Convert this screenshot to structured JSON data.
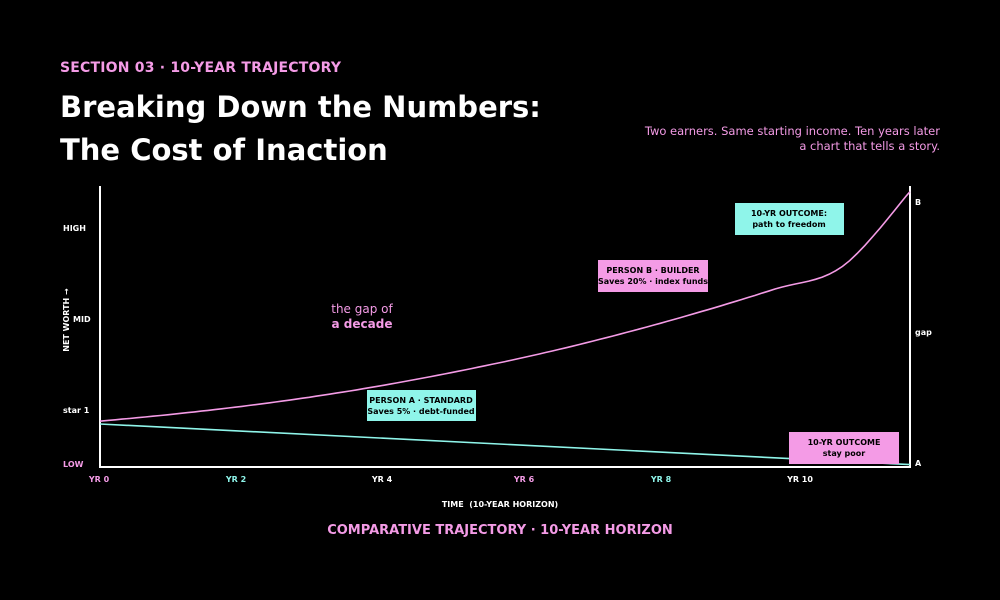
{
  "header": {
    "eyebrow": "SECTION 03 · 10-YEAR TRAJECTORY",
    "title_line1": "Breaking Down the Numbers:",
    "title_line2": "The Cost of Inaction",
    "subtitle_line1": "Two earners. Same starting income. Ten years later",
    "subtitle_line2": "a chart that tells a story."
  },
  "colors": {
    "background": "#000000",
    "pink": "#f49be6",
    "cyan": "#8ff5ea",
    "axis": "#ffffff"
  },
  "chart_data": {
    "type": "line",
    "title": "Breaking Down the Numbers: The Cost of Inaction",
    "xlabel": "TIME  (10-YEAR HORIZON)",
    "ylabel": "NET WORTH →",
    "x_ticks": [
      "YR 0",
      "YR 2",
      "YR 4",
      "YR 6",
      "YR 8",
      "YR 10"
    ],
    "y_ticks": [
      "LOW",
      "star 1",
      "MID",
      "HIGH"
    ],
    "xlim": [
      0,
      12
    ],
    "ylim": [
      0,
      100
    ],
    "grid": false,
    "series": [
      {
        "name": "PERSON B · BUILDER",
        "color": "#f49be6",
        "x": [
          0,
          1,
          2,
          3,
          4,
          5,
          6,
          7,
          8,
          9,
          10,
          11,
          12
        ],
        "y": [
          16,
          18.3,
          21,
          24.2,
          28,
          32.4,
          37.3,
          42.8,
          49,
          55.8,
          63.2,
          71.3,
          98
        ]
      },
      {
        "name": "PERSON A · STANDARD",
        "color": "#8ff5ea",
        "x": [
          0,
          12
        ],
        "y": [
          15,
          0.5
        ]
      }
    ],
    "right_axis_labels": [
      "B",
      "gap",
      "A"
    ],
    "annotations": [
      {
        "title": "PERSON B · BUILDER",
        "text": "Saves 20% · index funds"
      },
      {
        "title": "PERSON A · STANDARD",
        "text": "Saves 5% · debt-funded"
      },
      {
        "title": "10-YR OUTCOME:",
        "text": "path to freedom"
      },
      {
        "title": "10-YR OUTCOME",
        "text": "stay poor"
      }
    ],
    "gap_note_line1": "the gap of",
    "gap_note_line2": "a decade"
  },
  "footer": {
    "caption": "COMPARATIVE TRAJECTORY · 10-YEAR HORIZON"
  }
}
